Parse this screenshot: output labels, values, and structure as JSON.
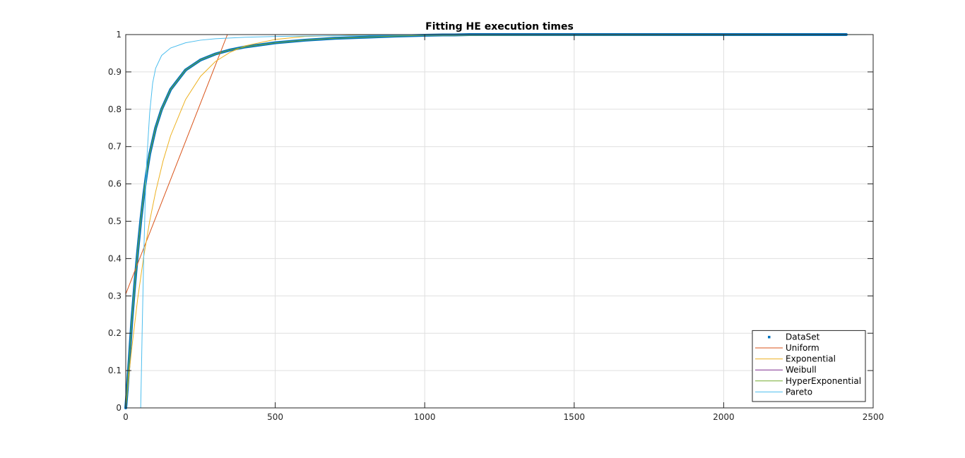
{
  "chart_data": {
    "type": "line",
    "title": "Fitting HE execution times",
    "xlabel": "",
    "ylabel": "",
    "xlim": [
      0,
      2500
    ],
    "ylim": [
      0,
      1
    ],
    "x_ticks": [
      0,
      500,
      1000,
      1500,
      2000,
      2500
    ],
    "x_tick_labels": [
      "0",
      "500",
      "1000",
      "1500",
      "2000",
      "2500"
    ],
    "y_ticks": [
      0,
      0.1,
      0.2,
      0.3,
      0.4,
      0.5,
      0.6,
      0.7,
      0.8,
      0.9,
      1
    ],
    "y_tick_labels": [
      "0",
      "0.1",
      "0.2",
      "0.3",
      "0.4",
      "0.5",
      "0.6",
      "0.7",
      "0.8",
      "0.9",
      "1"
    ],
    "grid": true,
    "legend_position": "bottom-right",
    "series": [
      {
        "name": "DataSet",
        "kind": "markers",
        "color": "#0072BD",
        "x": [
          0,
          5,
          10,
          15,
          20,
          30,
          40,
          50,
          60,
          70,
          80,
          100,
          120,
          150,
          200,
          250,
          300,
          350,
          400,
          500,
          600,
          700,
          800,
          900,
          1000,
          1060,
          1100,
          1150,
          1200,
          1250,
          1300,
          1350,
          1380,
          1430,
          1450,
          1470,
          1520,
          1570,
          1600,
          1680,
          1700,
          1740,
          1800,
          1820,
          2030,
          2120,
          2320,
          2410
        ],
        "y": [
          0,
          0.05,
          0.11,
          0.17,
          0.23,
          0.33,
          0.42,
          0.5,
          0.57,
          0.63,
          0.68,
          0.75,
          0.8,
          0.853,
          0.905,
          0.932,
          0.948,
          0.959,
          0.967,
          0.978,
          0.985,
          0.99,
          0.993,
          0.996,
          0.998,
          0.999,
          0.999,
          1,
          1,
          1,
          1,
          1,
          1,
          1,
          1,
          1,
          1,
          1,
          1,
          1,
          1,
          1,
          1,
          1,
          1,
          1,
          1,
          1
        ]
      },
      {
        "name": "Uniform",
        "kind": "line",
        "color": "#D95319",
        "x": [
          0,
          340,
          2500
        ],
        "y": [
          0.305,
          1,
          1
        ]
      },
      {
        "name": "Exponential",
        "kind": "line",
        "color": "#EDB120",
        "x": [
          0,
          10,
          20,
          40,
          60,
          80,
          100,
          125,
          150,
          200,
          250,
          300,
          350,
          400,
          500,
          600,
          800,
          1000,
          2500
        ],
        "y": [
          0,
          0.083,
          0.159,
          0.293,
          0.405,
          0.5,
          0.579,
          0.662,
          0.729,
          0.826,
          0.888,
          0.928,
          0.953,
          0.97,
          0.987,
          0.995,
          0.999,
          1,
          1
        ]
      },
      {
        "name": "Weibull",
        "kind": "line",
        "color": "#7E2F8E",
        "x": [
          0,
          2500
        ],
        "y": [
          0,
          0
        ]
      },
      {
        "name": "HyperExponential",
        "kind": "line",
        "color": "#77AC30",
        "x": [
          0,
          5,
          10,
          15,
          20,
          30,
          40,
          50,
          60,
          70,
          80,
          100,
          120,
          150,
          200,
          250,
          300,
          350,
          400,
          500,
          600,
          700,
          800,
          900,
          1000,
          2500
        ],
        "y": [
          0,
          0.05,
          0.11,
          0.17,
          0.23,
          0.33,
          0.42,
          0.5,
          0.57,
          0.63,
          0.68,
          0.75,
          0.8,
          0.853,
          0.905,
          0.932,
          0.948,
          0.959,
          0.967,
          0.978,
          0.985,
          0.99,
          0.993,
          0.996,
          0.998,
          1
        ]
      },
      {
        "name": "Pareto",
        "kind": "line",
        "color": "#4DBEEE",
        "x": [
          0,
          50,
          52,
          55,
          60,
          65,
          70,
          80,
          90,
          100,
          120,
          150,
          200,
          250,
          300,
          400,
          500,
          700,
          1000,
          2500
        ],
        "y": [
          0,
          0,
          0.08,
          0.21,
          0.4,
          0.55,
          0.66,
          0.79,
          0.87,
          0.91,
          0.944,
          0.964,
          0.978,
          0.985,
          0.989,
          0.993,
          0.995,
          0.997,
          0.999,
          1
        ]
      }
    ]
  }
}
